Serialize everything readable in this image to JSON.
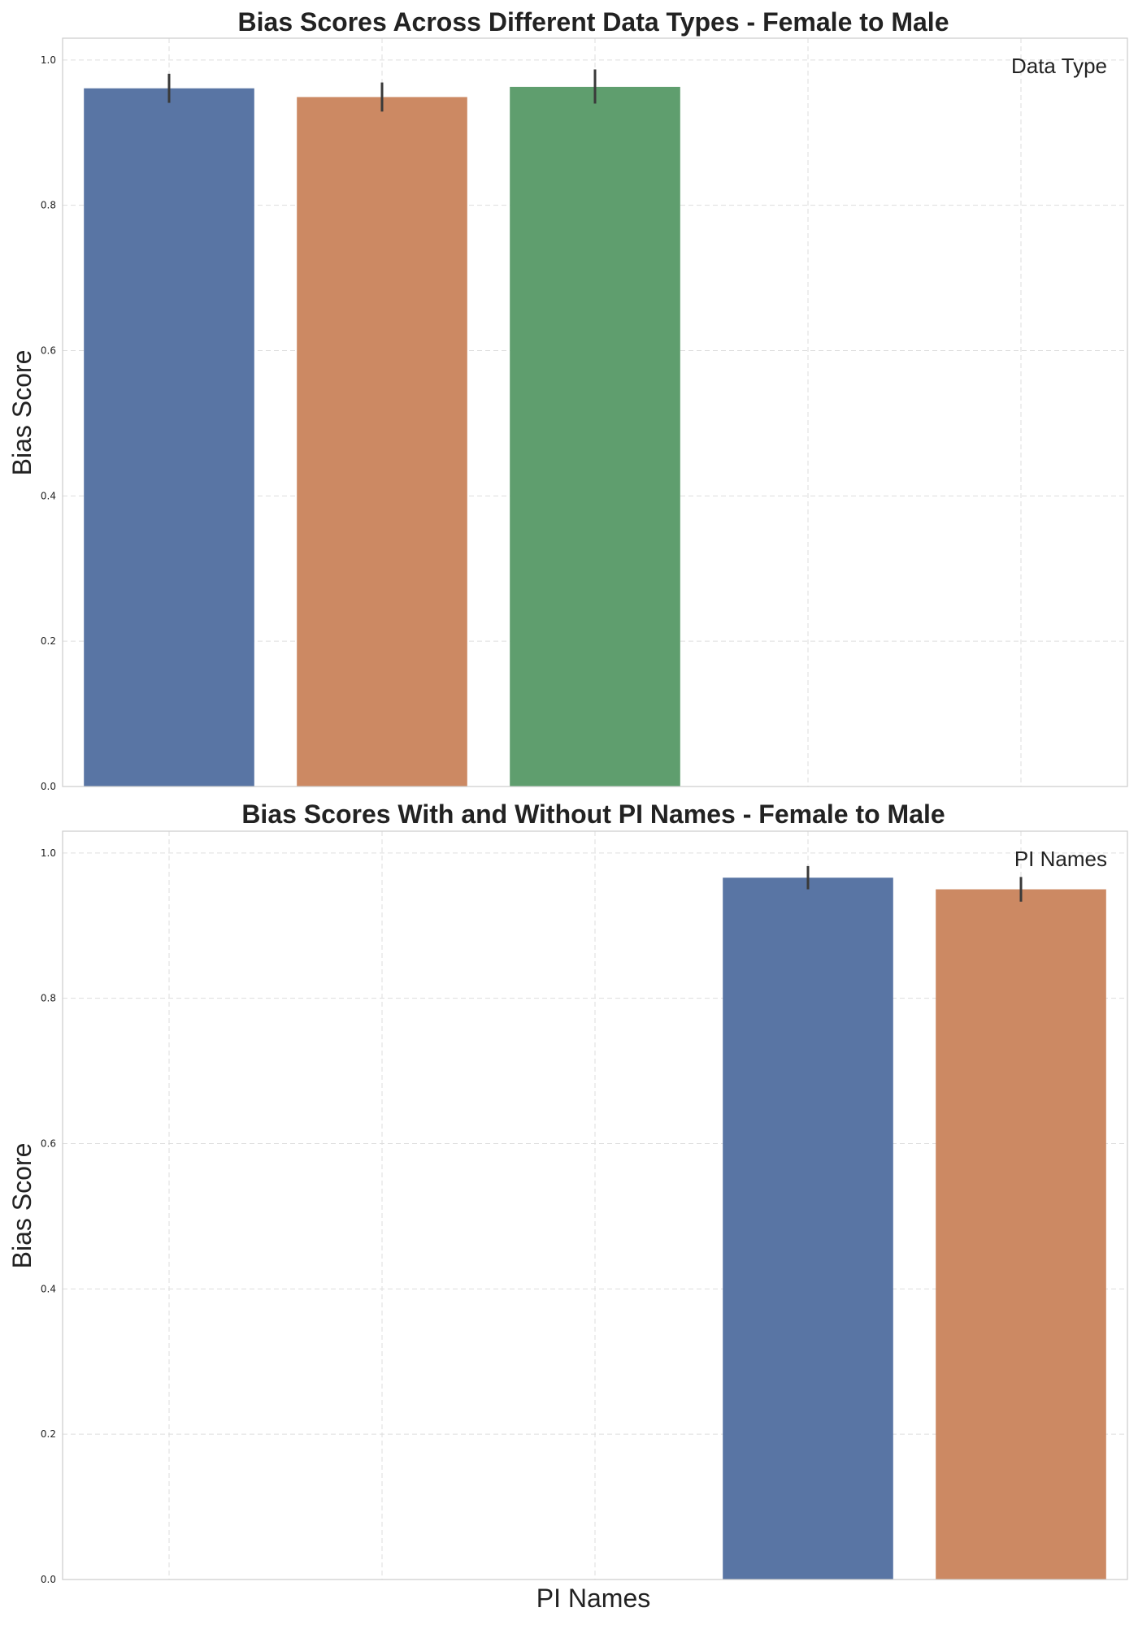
{
  "chart_data": [
    {
      "type": "bar",
      "title": "Bias Scores Across Different Data Types - Female to Male",
      "ylabel": "Bias Score",
      "xlabel": "",
      "legend_title": "Data Type",
      "legend_position": "top-right",
      "ylim": [
        0,
        1.03
      ],
      "yticks": [
        "0.0",
        "0.2",
        "0.4",
        "0.6",
        "0.8",
        "1.0"
      ],
      "grid": true,
      "slots": 5,
      "bars": [
        {
          "slot": 0,
          "value": 0.961,
          "err_low": 0.941,
          "err_high": 0.981,
          "color": "#5975a4"
        },
        {
          "slot": 1,
          "value": 0.949,
          "err_low": 0.929,
          "err_high": 0.969,
          "color": "#cc8963"
        },
        {
          "slot": 2,
          "value": 0.963,
          "err_low": 0.94,
          "err_high": 0.987,
          "color": "#5f9e6e"
        }
      ]
    },
    {
      "type": "bar",
      "title": "Bias Scores With and Without PI Names - Female to Male",
      "ylabel": "Bias Score",
      "xlabel": "PI Names",
      "legend_title": "PI Names",
      "legend_position": "top-right",
      "ylim": [
        0,
        1.03
      ],
      "yticks": [
        "0.0",
        "0.2",
        "0.4",
        "0.6",
        "0.8",
        "1.0"
      ],
      "grid": true,
      "slots": 5,
      "bars": [
        {
          "slot": 3,
          "value": 0.966,
          "err_low": 0.95,
          "err_high": 0.982,
          "color": "#5975a4"
        },
        {
          "slot": 4,
          "value": 0.95,
          "err_low": 0.933,
          "err_high": 0.967,
          "color": "#cc8963"
        }
      ]
    }
  ]
}
